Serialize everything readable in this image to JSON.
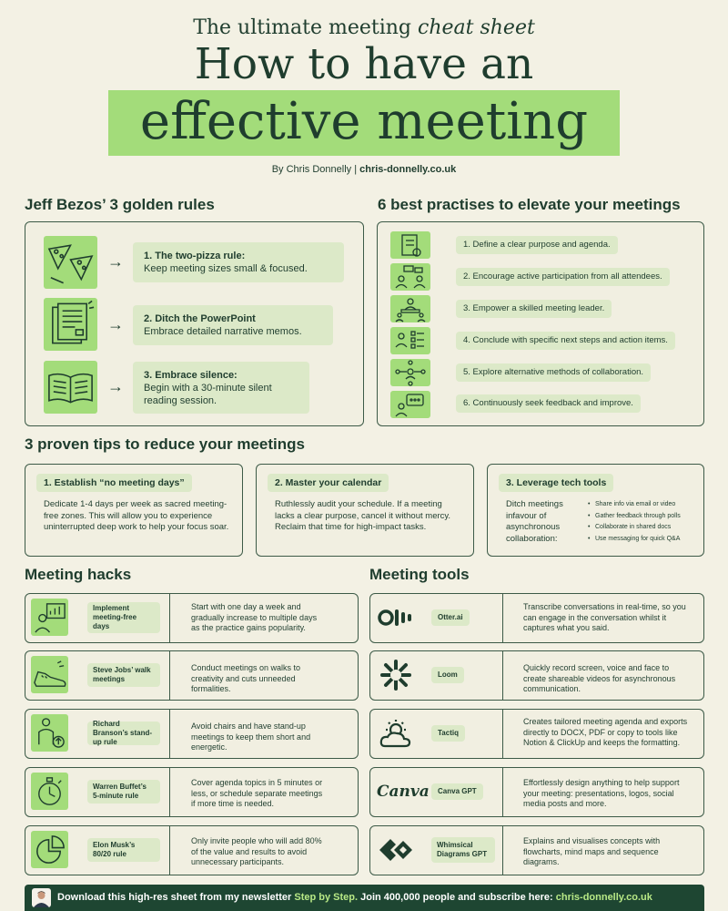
{
  "header": {
    "kicker_pre": "The ultimate meeting",
    "kicker_em": "cheat sheet",
    "title_line1": "How to have an",
    "title_line2": "effective meeting",
    "byline_pre": "By Chris Donnelly |",
    "byline_site": "chris-donnelly.co.uk"
  },
  "bezos": {
    "title": "Jeff Bezos’ 3 golden rules",
    "rules": [
      {
        "head": "1. The two-pizza rule:",
        "body": "Keep meeting sizes small & focused.",
        "icon": "pizza-icon"
      },
      {
        "head": "2. Ditch the PowerPoint",
        "body": "Embrace detailed narrative memos.",
        "icon": "memo-document-icon"
      },
      {
        "head": "3. Embrace silence:",
        "body": "Begin with a 30-minute silent reading session.",
        "icon": "open-book-icon"
      }
    ],
    "arrow": "→"
  },
  "practises": {
    "title": "6 best practises to elevate your meetings",
    "items": [
      {
        "text": "1. Define a clear purpose and agenda.",
        "icon": "clipboard-check-icon"
      },
      {
        "text": "2. Encourage active participation from all attendees.",
        "icon": "people-chat-icon"
      },
      {
        "text": "3. Empower a skilled meeting leader.",
        "icon": "leader-icon"
      },
      {
        "text": "4. Conclude with specific next steps and action items.",
        "icon": "checklist-person-icon"
      },
      {
        "text": "5. Explore alternative methods of collaboration.",
        "icon": "network-person-icon"
      },
      {
        "text": "6. Continuously seek feedback and improve.",
        "icon": "feedback-bubble-icon"
      }
    ]
  },
  "tips": {
    "title": "3 proven tips to reduce your meetings",
    "cards": [
      {
        "head": "1. Establish “no meeting days”",
        "body": "Dedicate 1-4 days per week as sacred meeting-free zones. This will allow you to experience uninterrupted deep work to help your focus soar."
      },
      {
        "head": "2. Master your calendar",
        "body": "Ruthlessly audit your schedule. If a meeting lacks a clear purpose, cancel it without mercy. Reclaim that time for high-impact tasks."
      },
      {
        "head": "3. Leverage tech tools",
        "body": "Ditch meetings infavour of asynchronous collaboration:",
        "bullets": [
          "Share info via email or video",
          "Gather feedback through polls",
          "Collaborate in shared docs",
          "Use messaging for quick Q&A"
        ]
      }
    ]
  },
  "hacks": {
    "title": "Meeting hacks",
    "rows": [
      {
        "label": "Implement meeting-free days",
        "desc": "Start with one day a week and gradually increase to multiple days as the practice gains popularity.",
        "icon": "chart-person-icon"
      },
      {
        "label": "Steve Jobs’ walk meetings",
        "desc": "Conduct meetings on walks to creativity and cuts unneeded formalities.",
        "icon": "sneaker-icon"
      },
      {
        "label": "Richard Branson’s stand-up rule",
        "desc": "Avoid chairs and have stand-up meetings to keep them short and energetic.",
        "icon": "standing-person-icon"
      },
      {
        "label": "Warren Buffet’s 5-minute rule",
        "desc": "Cover agenda topics in 5 minutes or less, or schedule separate meetings if more time is needed.",
        "icon": "stopwatch-icon"
      },
      {
        "label": "Elon Musk’s 80/20 rule",
        "desc": "Only invite people who will add 80% of the value and results to avoid unnecessary participants.",
        "icon": "pie-chart-icon"
      }
    ]
  },
  "tools": {
    "title": "Meeting tools",
    "rows": [
      {
        "label": "Otter.ai",
        "desc": "Transcribe conversations in real-time, so you can engage in the conversation whilst it captures what you said.",
        "icon": "otter-logo-icon"
      },
      {
        "label": "Loom",
        "desc": "Quickly record screen, voice and face to create shareable videos for asynchronous communication.",
        "icon": "loom-logo-icon"
      },
      {
        "label": "Tactiq",
        "desc": "Creates tailored meeting agenda and exports directly to DOCX, PDF or copy to tools like Notion & ClickUp and keeps the formatting.",
        "icon": "tactiq-logo-icon"
      },
      {
        "label": "Canva GPT",
        "desc": "Effortlessly design anything to help support your meeting: presentations, logos, social media posts and more.",
        "icon": "canva-logo-icon",
        "logo_text": "Canva"
      },
      {
        "label": "Whimsical Diagrams GPT",
        "desc": "Explains and visualises concepts with flowcharts, mind maps and sequence diagrams.",
        "icon": "whimsical-logo-icon"
      }
    ]
  },
  "footer": {
    "pre": "Download this high-res sheet from my newsletter",
    "highlight": "Step by Step.",
    "mid": "Join 400,000 people and subscribe here:",
    "link": "chris-donnelly.co.uk",
    "avatar": "avatar"
  },
  "colors": {
    "background": "#f3f1e4",
    "dark_green": "#1f3d2e",
    "lime": "#a3dc7a",
    "pill": "#dce9c8",
    "footer_bg": "#1e4632",
    "footer_highlight": "#b8e986"
  }
}
